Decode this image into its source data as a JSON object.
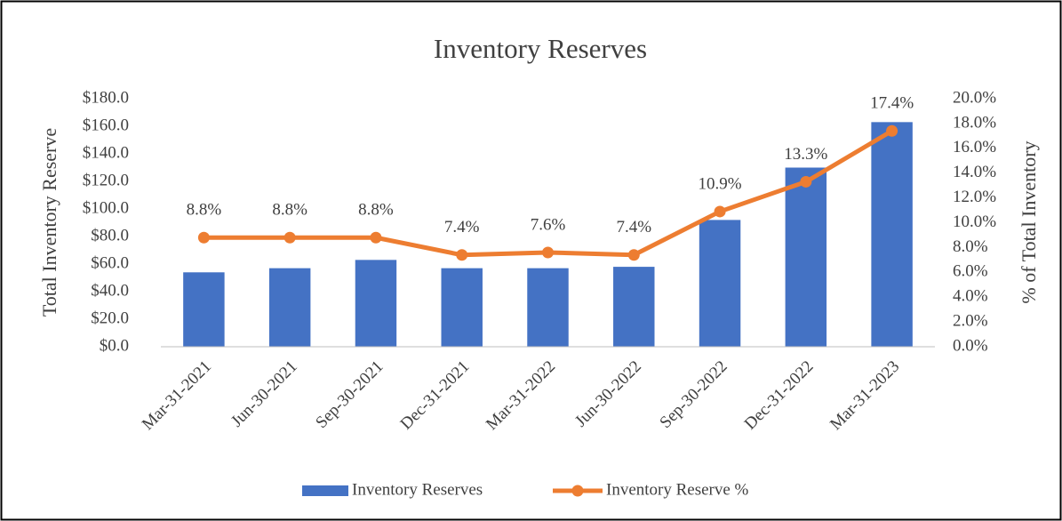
{
  "chart_data": {
    "type": "combo",
    "title": "Inventory Reserves",
    "ylabel": "Total Inventory Reserve",
    "y2label": "% of Total Inventory",
    "categories": [
      "Mar-31-2021",
      "Jun-30-2021",
      "Sep-30-2021",
      "Dec-31-2021",
      "Mar-31-2022",
      "Jun-30-2022",
      "Sep-30-2022",
      "Dec-31-2022",
      "Mar-31-2023"
    ],
    "series": [
      {
        "name": "Inventory Reserves",
        "type": "bar",
        "color": "#4472c4",
        "values": [
          54,
          57,
          63,
          57,
          57,
          58,
          92,
          130,
          163
        ]
      },
      {
        "name": "Inventory Reserve %",
        "type": "line",
        "axis": "y2",
        "color": "#ed7d31",
        "values": [
          8.8,
          8.8,
          8.8,
          7.4,
          7.6,
          7.4,
          10.9,
          13.3,
          17.4
        ],
        "value_labels": [
          "8.8%",
          "8.8%",
          "8.8%",
          "7.4%",
          "7.6%",
          "7.4%",
          "10.9%",
          "13.3%",
          "17.4%"
        ]
      }
    ],
    "ylim": [
      0,
      180
    ],
    "yticks": [
      {
        "value": 0,
        "label": "$0.0"
      },
      {
        "value": 20,
        "label": "$20.0"
      },
      {
        "value": 40,
        "label": "$40.0"
      },
      {
        "value": 60,
        "label": "$60.0"
      },
      {
        "value": 80,
        "label": "$80.0"
      },
      {
        "value": 100,
        "label": "$100.0"
      },
      {
        "value": 120,
        "label": "$120.0"
      },
      {
        "value": 140,
        "label": "$140.0"
      },
      {
        "value": 160,
        "label": "$160.0"
      },
      {
        "value": 180,
        "label": "$180.0"
      }
    ],
    "y2lim": [
      0,
      20
    ],
    "y2ticks": [
      {
        "value": 0,
        "label": "0.0%"
      },
      {
        "value": 2,
        "label": "2.0%"
      },
      {
        "value": 4,
        "label": "4.0%"
      },
      {
        "value": 6,
        "label": "6.0%"
      },
      {
        "value": 8,
        "label": "8.0%"
      },
      {
        "value": 10,
        "label": "10.0%"
      },
      {
        "value": 12,
        "label": "12.0%"
      },
      {
        "value": 14,
        "label": "14.0%"
      },
      {
        "value": 16,
        "label": "16.0%"
      },
      {
        "value": 18,
        "label": "18.0%"
      },
      {
        "value": 20,
        "label": "20.0%"
      }
    ],
    "grid": false,
    "legend": "bottom"
  }
}
